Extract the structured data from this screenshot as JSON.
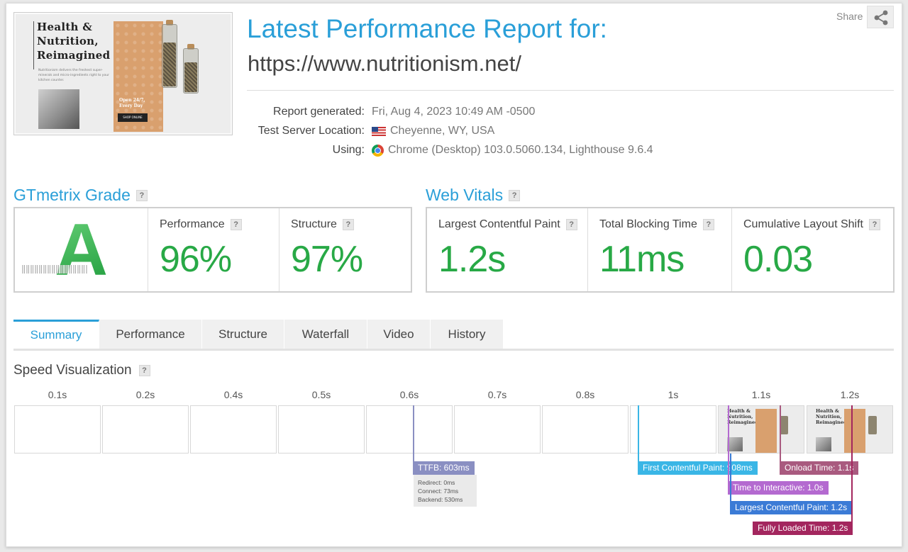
{
  "thumbnail": {
    "headline": "Health & Nutrition, Reimagined",
    "description": "Nutritionism delivers the freshest super-minerals and micro-ingredients right to your kitchen counter.",
    "badge": "Open 24/7, Every Day",
    "cta": "SHOP ONLINE"
  },
  "header": {
    "title": "Latest Performance Report for:",
    "url": "https://www.nutritionism.net/",
    "share_label": "Share"
  },
  "report_meta": [
    {
      "label": "Report generated:",
      "value": "Fri, Aug 4, 2023 10:49 AM -0500",
      "icon": ""
    },
    {
      "label": "Test Server Location:",
      "value": "Cheyenne, WY, USA",
      "icon": "us-flag-icon"
    },
    {
      "label": "Using:",
      "value": "Chrome (Desktop) 103.0.5060.134, Lighthouse 9.6.4",
      "icon": "chrome-icon"
    }
  ],
  "gtmetrix": {
    "title": "GTmetrix Grade",
    "grade": "A",
    "performance_label": "Performance",
    "performance_value": "96%",
    "structure_label": "Structure",
    "structure_value": "97%"
  },
  "web_vitals": {
    "title": "Web Vitals",
    "items": [
      {
        "label": "Largest Contentful Paint",
        "value": "1.2s"
      },
      {
        "label": "Total Blocking Time",
        "value": "11ms"
      },
      {
        "label": "Cumulative Layout Shift",
        "value": "0.03"
      }
    ]
  },
  "tabs": [
    "Summary",
    "Performance",
    "Structure",
    "Waterfall",
    "Video",
    "History"
  ],
  "active_tab": "Summary",
  "speed_viz": {
    "title": "Speed Visualization",
    "ticks": [
      "0.1s",
      "0.2s",
      "0.4s",
      "0.5s",
      "0.6s",
      "0.7s",
      "0.8s",
      "1s",
      "1.1s",
      "1.2s"
    ],
    "frame_headlines": [
      "Health & Nutrition, Reimagined",
      "Health & Nutrition, Reimagined"
    ],
    "ttfb": {
      "label": "TTFB: 603ms",
      "redirect": "Redirect: 0ms",
      "connect": "Connect: 73ms",
      "backend": "Backend: 530ms"
    },
    "markers": {
      "fcp": "First Contentful Paint: 908ms",
      "onload": "Onload Time: 1.1s",
      "tti": "Time to Interactive: 1.0s",
      "lcp": "Largest Contentful Paint: 1.2s",
      "fully_loaded": "Fully Loaded Time: 1.2s"
    }
  },
  "colors": {
    "accent": "#2a9fd8",
    "good": "#28a946",
    "ttfb": "#8a8fc2",
    "fcp": "#3ab6e6",
    "onload": "#a95a7f",
    "tti": "#b46ad0",
    "lcp": "#3b7bd6",
    "fully_loaded": "#a3265e"
  }
}
